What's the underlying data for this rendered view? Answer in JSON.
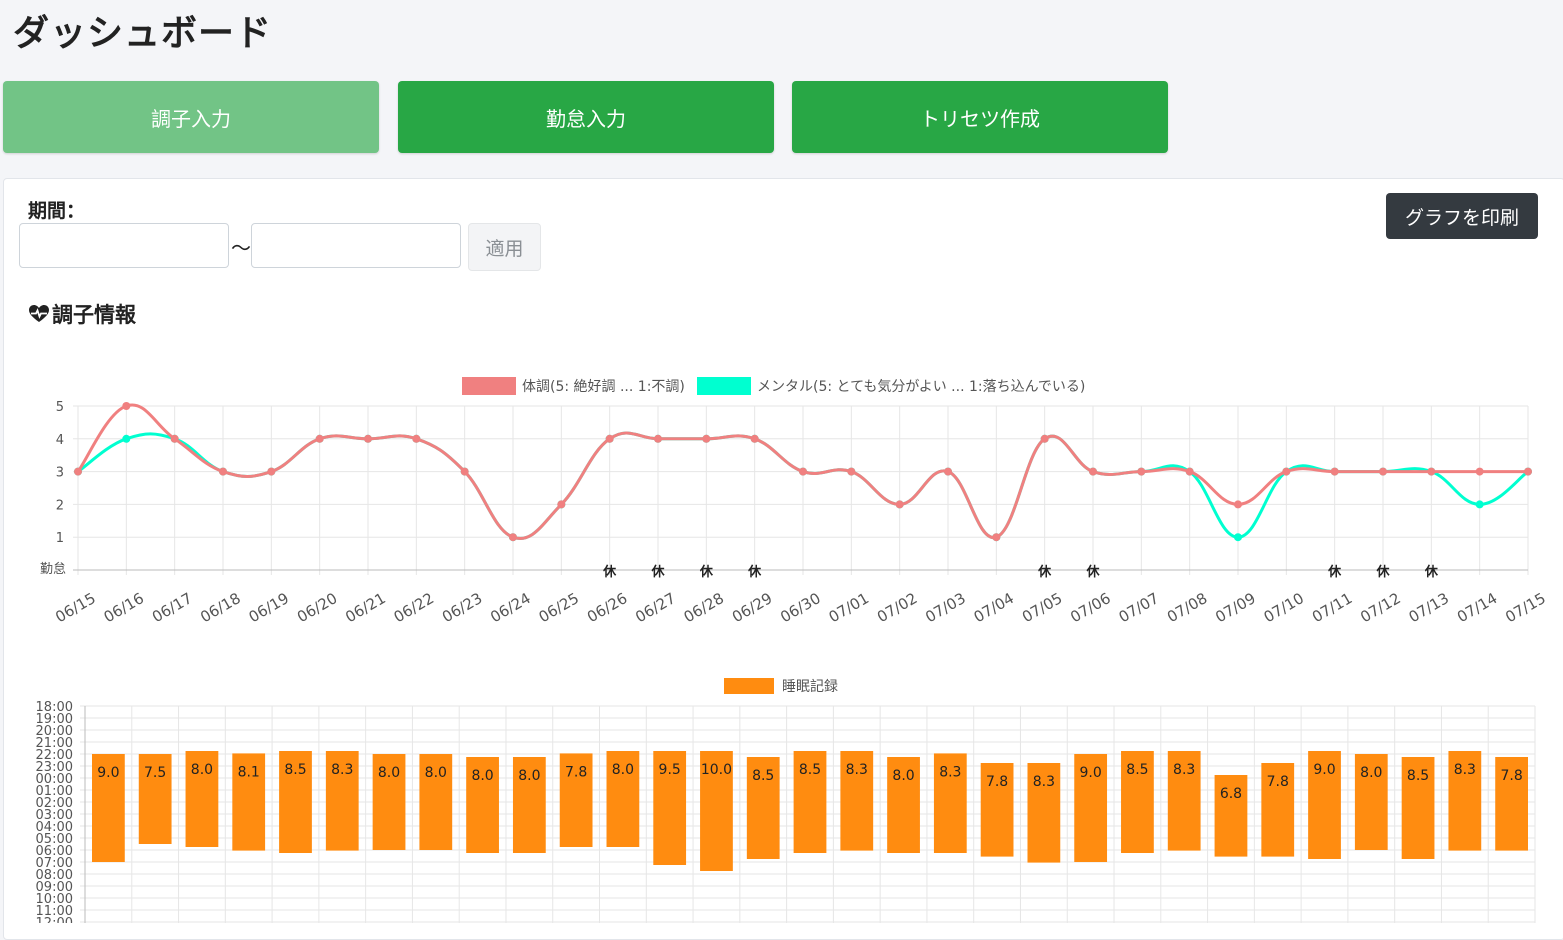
{
  "page": {
    "title": "ダッシュボード"
  },
  "nav": {
    "buttons": [
      {
        "label": "調子入力",
        "active": true
      },
      {
        "label": "勤怠入力",
        "active": false
      },
      {
        "label": "トリセツ作成",
        "active": false
      }
    ]
  },
  "filter": {
    "period_label": "期間：",
    "start_value": "",
    "end_value": "",
    "separator": "～",
    "apply_label": "適用"
  },
  "print_label": "グラフを印刷",
  "section": {
    "title": "調子情報",
    "icon": "heart-pulse-icon"
  },
  "colors": {
    "active_nav": "#72c486",
    "nav": "#28a745",
    "print": "#343a40",
    "physical": "#f08080",
    "mental": "#00ffd0",
    "sleep": "#ff8c10"
  },
  "chart_data": [
    {
      "type": "line",
      "categories": [
        "06/15",
        "06/16",
        "06/17",
        "06/18",
        "06/19",
        "06/20",
        "06/21",
        "06/22",
        "06/23",
        "06/24",
        "06/25",
        "06/26",
        "06/27",
        "06/28",
        "06/29",
        "06/30",
        "07/01",
        "07/02",
        "07/03",
        "07/04",
        "07/05",
        "07/06",
        "07/07",
        "07/08",
        "07/09",
        "07/10",
        "07/11",
        "07/12",
        "07/13",
        "07/14",
        "07/15"
      ],
      "series": [
        {
          "name": "体調(5: 絶好調 ... 1:不調)",
          "values": [
            3,
            5,
            4,
            3,
            3,
            4,
            4,
            4,
            3,
            1,
            2,
            4,
            4,
            4,
            4,
            3,
            3,
            2,
            3,
            1,
            4,
            3,
            3,
            3,
            2,
            3,
            3,
            3,
            3,
            3,
            3
          ]
        },
        {
          "name": "メンタル(5: とても気分がよい ... 1:落ち込んでいる)",
          "values": [
            3,
            4,
            4,
            3,
            3,
            4,
            4,
            4,
            3,
            1,
            2,
            4,
            4,
            4,
            4,
            3,
            3,
            2,
            3,
            1,
            4,
            3,
            3,
            3,
            1,
            3,
            3,
            3,
            3,
            2,
            3
          ]
        }
      ],
      "ylim": [
        0,
        5
      ],
      "yticks": [
        "1",
        "2",
        "3",
        "4",
        "5"
      ],
      "attendance_label": "勤怠",
      "attendance": [
        "",
        "",
        "",
        "",
        "",
        "",
        "",
        "",
        "",
        "",
        "",
        "休",
        "休",
        "休",
        "休",
        "",
        "",
        "",
        "",
        "",
        "休",
        "休",
        "",
        "",
        "",
        "",
        "休",
        "休",
        "休",
        "",
        ""
      ],
      "grid": true,
      "legend": "top"
    },
    {
      "type": "bar",
      "series": [
        {
          "name": "睡眠記録",
          "values": [
            9.0,
            7.5,
            8.0,
            8.1,
            8.5,
            8.3,
            8.0,
            8.0,
            8.0,
            8.0,
            7.8,
            8.0,
            9.5,
            10.0,
            8.5,
            8.5,
            8.3,
            8.0,
            8.3,
            7.8,
            8.3,
            9.0,
            8.5,
            8.3,
            6.8,
            7.8,
            9.0,
            8.0,
            8.5,
            8.3,
            7.8
          ]
        }
      ],
      "labels": [
        "9.0",
        "7.5",
        "8.0",
        "8.1",
        "8.5",
        "8.3",
        "8.0",
        "8.0",
        "8.0",
        "8.0",
        "7.8",
        "8.0",
        "9.5",
        "10.0",
        "8.5",
        "8.5",
        "8.3",
        "8.0",
        "8.3",
        "7.8",
        "8.3",
        "9.0",
        "8.5",
        "8.3",
        "6.8",
        "7.8",
        "9.0",
        "8.0",
        "8.5",
        "8.3",
        "7.8"
      ],
      "bedtime_hours": [
        22.0,
        22.0,
        21.75,
        21.95,
        21.75,
        21.75,
        22.0,
        22.0,
        22.25,
        22.25,
        21.95,
        21.75,
        21.75,
        21.75,
        22.25,
        21.75,
        21.75,
        22.25,
        21.95,
        22.75,
        22.75,
        22.0,
        21.75,
        21.75,
        23.75,
        22.75,
        21.75,
        22.0,
        22.25,
        21.75,
        22.25
      ],
      "wake_hours": [
        31.0,
        29.5,
        29.75,
        30.05,
        30.25,
        30.05,
        30.0,
        30.0,
        30.25,
        30.25,
        29.75,
        29.75,
        31.25,
        31.75,
        30.75,
        30.25,
        30.05,
        30.25,
        30.25,
        30.55,
        31.05,
        31.0,
        30.25,
        30.05,
        30.55,
        30.55,
        30.75,
        30.0,
        30.75,
        30.05,
        30.05
      ],
      "ylim": [
        "18:00",
        "12:00"
      ],
      "yticks": [
        "18:00",
        "19:00",
        "20:00",
        "21:00",
        "22:00",
        "23:00",
        "00:00",
        "01:00",
        "02:00",
        "03:00",
        "04:00",
        "05:00",
        "06:00",
        "07:00",
        "08:00",
        "09:00",
        "10:00",
        "11:00",
        "12:00"
      ],
      "grid": true,
      "legend": "top"
    }
  ]
}
